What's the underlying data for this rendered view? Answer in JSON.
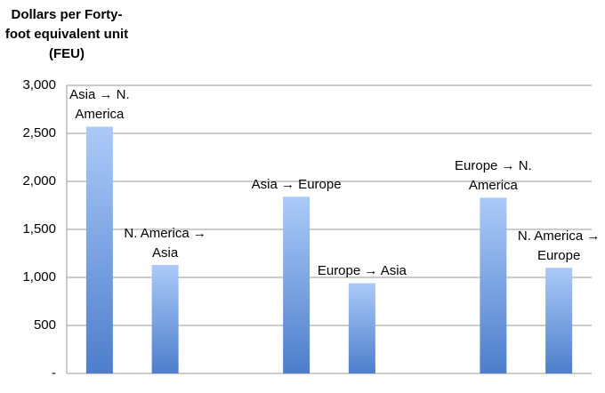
{
  "chart_data": {
    "type": "bar",
    "title": "Dollars per Forty-foot equivalent unit (FEU)",
    "categories": [
      "Asia → N. America",
      "N. America → Asia",
      null,
      "Asia → Europe",
      "Europe → Asia",
      null,
      "Europe → N. America",
      "N. America → Europe"
    ],
    "values": [
      2570,
      1130,
      null,
      1840,
      940,
      null,
      1830,
      1100
    ],
    "gradient": [
      "#abcaf8",
      "#4d7ecb"
    ],
    "ylim": [
      0,
      3000
    ],
    "yticks": [
      {
        "value": 0,
        "label": "-"
      },
      {
        "value": 500,
        "label": "500"
      },
      {
        "value": 1000,
        "label": "1,000"
      },
      {
        "value": 1500,
        "label": "1,500"
      },
      {
        "value": 2000,
        "label": "2,000"
      },
      {
        "value": 2500,
        "label": "2,500"
      },
      {
        "value": 3000,
        "label": "3,000"
      }
    ],
    "grid": true
  }
}
